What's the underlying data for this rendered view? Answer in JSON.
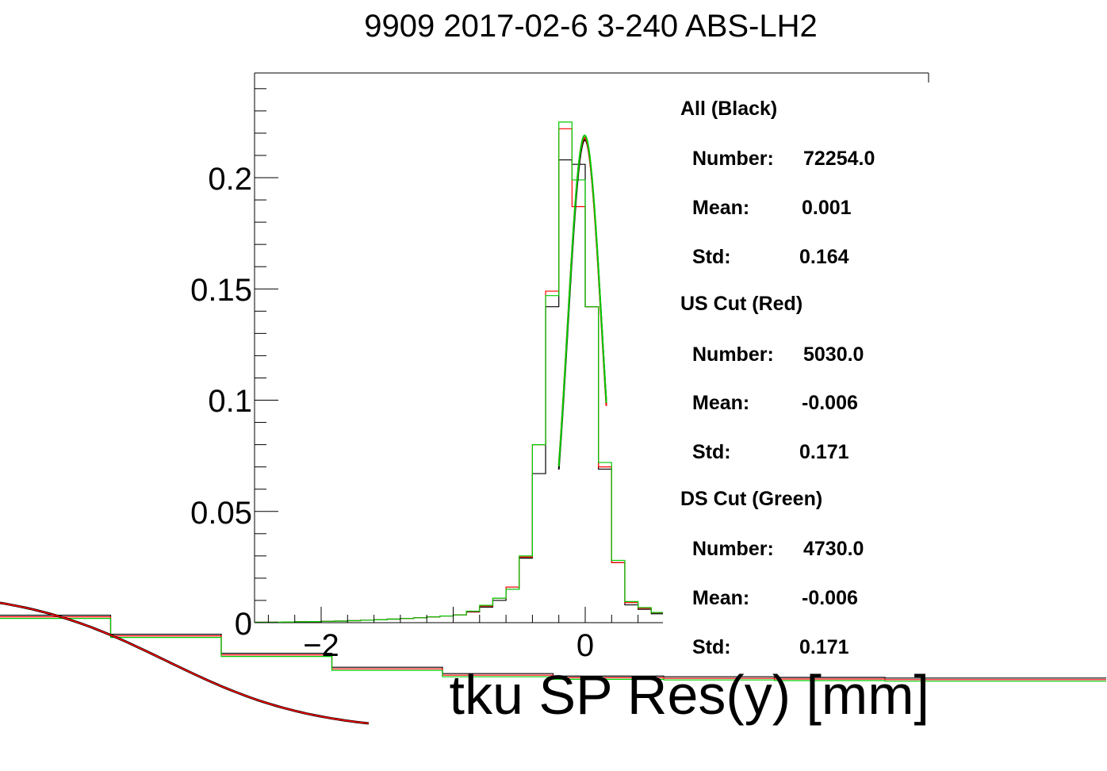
{
  "chart_data": {
    "type": "histogram",
    "title": "9909 2017-02-6 3-240 ABS-LH2",
    "xlabel": "tku SP Res(y) [mm]",
    "ylabel": "",
    "xlim": [
      -2.5,
      0.6
    ],
    "ylim": [
      0,
      0.247
    ],
    "x_ticks": [
      {
        "v": -2,
        "label": "−2"
      },
      {
        "v": 0,
        "label": "0"
      }
    ],
    "y_ticks": [
      {
        "v": 0,
        "label": "0"
      },
      {
        "v": 0.05,
        "label": "0.05"
      },
      {
        "v": 0.1,
        "label": "0.1"
      },
      {
        "v": 0.15,
        "label": "0.15"
      },
      {
        "v": 0.2,
        "label": "0.2"
      }
    ],
    "bin_edges": [
      -2.5,
      -2.4,
      -2.3,
      -2.2,
      -2.1,
      -2.0,
      -1.9,
      -1.8,
      -1.7,
      -1.6,
      -1.5,
      -1.4,
      -1.3,
      -1.2,
      -1.1,
      -1.0,
      -0.9,
      -0.8,
      -0.7,
      -0.6,
      -0.5,
      -0.4,
      -0.3,
      -0.2,
      -0.1,
      0.0,
      0.1,
      0.2,
      0.3,
      0.4,
      0.5,
      0.6
    ],
    "series": [
      {
        "name": "All (Black)",
        "color": "#000000",
        "values": [
          0.0002,
          0.0002,
          0.0003,
          0.0004,
          0.0005,
          0.0006,
          0.0007,
          0.0009,
          0.0011,
          0.0013,
          0.0016,
          0.0019,
          0.0022,
          0.0026,
          0.003,
          0.0035,
          0.0048,
          0.007,
          0.01,
          0.015,
          0.029,
          0.067,
          0.142,
          0.208,
          0.206,
          0.142,
          0.069,
          0.027,
          0.008,
          0.006,
          0.004
        ],
        "fit": {
          "mean": -0.003,
          "sigma": 0.13,
          "amplitude": 0.217,
          "range": [
            -0.2,
            0.16
          ]
        }
      },
      {
        "name": "US Cut (Red)",
        "color": "#ff0000",
        "values": [
          0.0002,
          0.0002,
          0.0003,
          0.0004,
          0.0005,
          0.0006,
          0.0007,
          0.0009,
          0.0011,
          0.0013,
          0.0016,
          0.0019,
          0.0022,
          0.0026,
          0.003,
          0.0035,
          0.005,
          0.0075,
          0.011,
          0.016,
          0.0295,
          0.08,
          0.149,
          0.222,
          0.187,
          0.142,
          0.07,
          0.027,
          0.009,
          0.0065,
          0.0045
        ],
        "fit": {
          "mean": -0.005,
          "sigma": 0.13,
          "amplitude": 0.218,
          "range": [
            -0.2,
            0.16
          ]
        }
      },
      {
        "name": "DS Cut (Green)",
        "color": "#00cc00",
        "values": [
          0.0002,
          0.0002,
          0.0003,
          0.0004,
          0.0005,
          0.0006,
          0.0007,
          0.0009,
          0.0011,
          0.0013,
          0.0016,
          0.0019,
          0.0022,
          0.0026,
          0.003,
          0.0035,
          0.0052,
          0.0078,
          0.011,
          0.015,
          0.03,
          0.08,
          0.147,
          0.225,
          0.199,
          0.142,
          0.072,
          0.028,
          0.0095,
          0.0068,
          0.0046
        ],
        "fit": {
          "mean": -0.004,
          "sigma": 0.13,
          "amplitude": 0.219,
          "range": [
            -0.2,
            0.16
          ]
        }
      }
    ],
    "stats": [
      {
        "label": "All (Black)",
        "number_label": "Number:",
        "number": "72254.0",
        "mean_label": "Mean:",
        "mean": "0.001",
        "std_label": "Std:",
        "std": "0.164"
      },
      {
        "label": "US Cut (Red)",
        "number_label": "Number:",
        "number": "5030.0",
        "mean_label": "Mean:",
        "mean": "-0.006",
        "std_label": "Std:",
        "std": "0.171"
      },
      {
        "label": "DS Cut (Green)",
        "number_label": "Number:",
        "number": "4730.0",
        "mean_label": "Mean:",
        "mean": "-0.006",
        "std_label": "Std:",
        "std": "0.171"
      }
    ],
    "ghost": {
      "bin_values": [
        0.0078,
        0.0048,
        0.0018,
        -0.0004,
        -0.0014,
        -0.0018,
        -0.0019,
        -0.002,
        -0.0021,
        -0.0021
      ],
      "colors": [
        "#000000",
        "#ff0000",
        "#00cc00"
      ]
    }
  }
}
